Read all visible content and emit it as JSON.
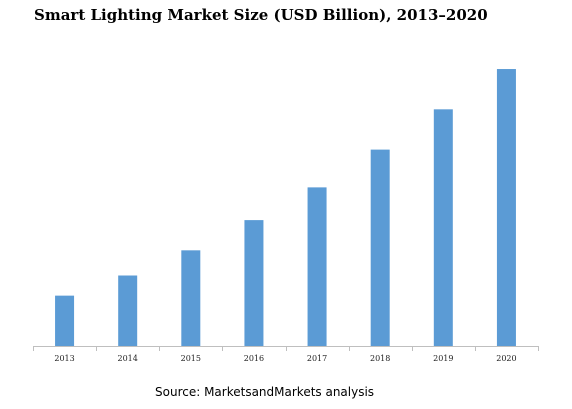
{
  "chart_data": {
    "type": "bar",
    "title": "Smart Lighting Market Size (USD Billion), 2013–2020",
    "categories": [
      "2013",
      "2014",
      "2015",
      "2016",
      "2017",
      "2018",
      "2019",
      "2020"
    ],
    "values": [
      2.0,
      2.8,
      3.8,
      5.0,
      6.3,
      7.8,
      9.4,
      11.0
    ],
    "xlabel": "",
    "ylabel": "",
    "ylim": [
      0,
      11.2
    ],
    "grid": false,
    "legend": "none",
    "bar_color": "#5B9BD5",
    "source": "Source: MarketsandMarkets analysis"
  }
}
